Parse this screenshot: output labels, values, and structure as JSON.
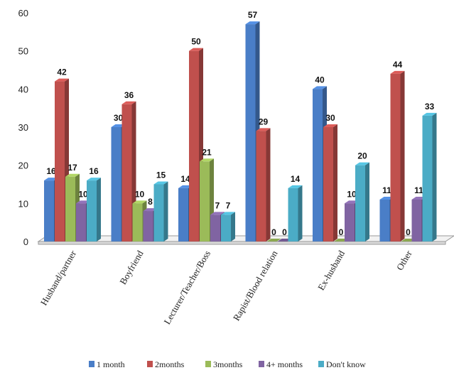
{
  "chart_data": {
    "type": "bar",
    "title": "",
    "xlabel": "",
    "ylabel": "",
    "ylim": [
      0,
      60
    ],
    "yticks": [
      0,
      10,
      20,
      30,
      40,
      50,
      60
    ],
    "grid": false,
    "legend_position": "bottom",
    "categories": [
      "Husband/partner",
      "Boyfriend",
      "Lecturer/Teacher/Boss",
      "Rapist/Blood relation",
      "Ex-husband",
      "Other"
    ],
    "series": [
      {
        "name": "1 month",
        "color": "#4a7ec7",
        "values": [
          16,
          30,
          14,
          57,
          40,
          11
        ],
        "labels": [
          "16",
          "30",
          "14",
          "57",
          "40",
          "11"
        ]
      },
      {
        "name": "2months",
        "color": "#c0504d",
        "values": [
          42,
          36,
          50,
          29,
          30,
          44
        ],
        "labels": [
          "42",
          "36",
          "50",
          "29",
          "30",
          "44"
        ]
      },
      {
        "name": "3months",
        "color": "#9bbb59",
        "values": [
          17,
          10,
          21,
          0,
          0,
          0
        ],
        "labels": [
          "17",
          "10",
          "21",
          "0",
          "0",
          "0"
        ]
      },
      {
        "name": "4+ months",
        "color": "#8064a2",
        "values": [
          10,
          8,
          7,
          0,
          10,
          11
        ],
        "labels": [
          "10",
          "8",
          "7",
          "0",
          "10",
          "11"
        ]
      },
      {
        "name": "Don't know",
        "color": "#4bacc6",
        "values": [
          16,
          15,
          7,
          14,
          20,
          33
        ],
        "labels": [
          "16",
          "15",
          "7",
          "14",
          "20",
          "33"
        ]
      }
    ]
  }
}
